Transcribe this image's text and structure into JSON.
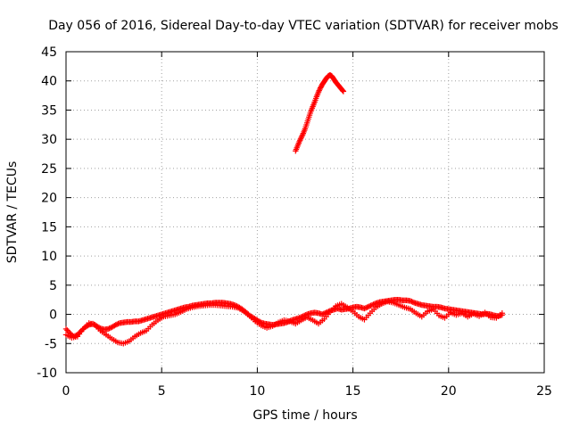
{
  "chart_data": {
    "type": "scatter",
    "title": "Day 056 of 2016, Sidereal Day-to-day VTEC variation (SDTVAR) for receiver mobs",
    "xlabel": "GPS time / hours",
    "ylabel": "SDTVAR / TECUs",
    "xlim": [
      0,
      25
    ],
    "ylim": [
      -10,
      45
    ],
    "xticks": [
      "0",
      "5",
      "10",
      "15",
      "20",
      "25"
    ],
    "yticks": [
      "-10",
      "-5",
      "0",
      "5",
      "10",
      "15",
      "20",
      "25",
      "30",
      "35",
      "40",
      "45"
    ],
    "grid": true,
    "marker": "plus",
    "color": "#ff0000",
    "series": [
      {
        "name": "main band",
        "points": [
          [
            0.0,
            -2.5
          ],
          [
            0.2,
            -3.2
          ],
          [
            0.4,
            -3.8
          ],
          [
            0.6,
            -3.5
          ],
          [
            0.8,
            -2.8
          ],
          [
            1.0,
            -2.2
          ],
          [
            1.2,
            -1.8
          ],
          [
            1.4,
            -1.6
          ],
          [
            1.6,
            -2.0
          ],
          [
            1.8,
            -2.4
          ],
          [
            2.0,
            -2.6
          ],
          [
            2.2,
            -2.5
          ],
          [
            2.4,
            -2.2
          ],
          [
            2.6,
            -1.8
          ],
          [
            2.8,
            -1.5
          ],
          [
            3.0,
            -1.4
          ],
          [
            3.2,
            -1.3
          ],
          [
            3.4,
            -1.3
          ],
          [
            3.6,
            -1.2
          ],
          [
            3.8,
            -1.2
          ],
          [
            4.0,
            -1.0
          ],
          [
            4.2,
            -0.8
          ],
          [
            4.4,
            -0.6
          ],
          [
            4.6,
            -0.4
          ],
          [
            4.8,
            -0.2
          ],
          [
            5.0,
            0.0
          ],
          [
            5.2,
            0.2
          ],
          [
            5.4,
            0.4
          ],
          [
            5.6,
            0.6
          ],
          [
            5.8,
            0.8
          ],
          [
            6.0,
            1.0
          ],
          [
            6.2,
            1.2
          ],
          [
            6.4,
            1.3
          ],
          [
            6.6,
            1.5
          ],
          [
            6.8,
            1.6
          ],
          [
            7.0,
            1.7
          ],
          [
            7.2,
            1.8
          ],
          [
            7.4,
            1.9
          ],
          [
            7.6,
            1.9
          ],
          [
            7.8,
            2.0
          ],
          [
            8.0,
            2.0
          ],
          [
            8.2,
            2.0
          ],
          [
            8.4,
            1.9
          ],
          [
            8.6,
            1.8
          ],
          [
            8.8,
            1.6
          ],
          [
            9.0,
            1.3
          ],
          [
            9.2,
            0.9
          ],
          [
            9.4,
            0.4
          ],
          [
            9.6,
            -0.2
          ],
          [
            9.8,
            -0.6
          ],
          [
            10.0,
            -1.0
          ],
          [
            10.2,
            -1.4
          ],
          [
            10.4,
            -1.6
          ],
          [
            10.6,
            -1.7
          ],
          [
            10.8,
            -1.8
          ],
          [
            11.0,
            -1.7
          ],
          [
            11.2,
            -1.6
          ],
          [
            11.4,
            -1.5
          ],
          [
            11.6,
            -1.3
          ],
          [
            11.8,
            -1.0
          ],
          [
            12.0,
            -0.8
          ],
          [
            12.2,
            -0.6
          ],
          [
            12.4,
            -0.3
          ],
          [
            12.6,
            0.0
          ],
          [
            12.8,
            0.2
          ],
          [
            13.0,
            0.3
          ],
          [
            13.2,
            0.2
          ],
          [
            13.4,
            0.0
          ],
          [
            13.6,
            0.3
          ],
          [
            13.8,
            0.6
          ],
          [
            14.0,
            0.8
          ],
          [
            14.2,
            1.0
          ],
          [
            14.4,
            0.8
          ],
          [
            14.6,
            0.9
          ],
          [
            14.8,
            1.0
          ],
          [
            15.0,
            1.2
          ],
          [
            15.2,
            1.3
          ],
          [
            15.4,
            1.2
          ],
          [
            15.6,
            1.0
          ],
          [
            15.8,
            1.3
          ],
          [
            16.0,
            1.6
          ],
          [
            16.2,
            1.9
          ],
          [
            16.4,
            2.1
          ],
          [
            16.6,
            2.2
          ],
          [
            16.8,
            2.3
          ],
          [
            17.0,
            2.4
          ],
          [
            17.2,
            2.5
          ],
          [
            17.4,
            2.5
          ],
          [
            17.6,
            2.4
          ],
          [
            17.8,
            2.4
          ],
          [
            18.0,
            2.3
          ],
          [
            18.2,
            2.0
          ],
          [
            18.4,
            1.8
          ],
          [
            18.6,
            1.6
          ],
          [
            18.8,
            1.5
          ],
          [
            19.0,
            1.4
          ],
          [
            19.2,
            1.3
          ],
          [
            19.4,
            1.3
          ],
          [
            19.6,
            1.2
          ],
          [
            19.8,
            1.0
          ],
          [
            20.0,
            0.9
          ],
          [
            20.2,
            0.8
          ],
          [
            20.4,
            0.7
          ],
          [
            20.6,
            0.6
          ],
          [
            20.8,
            0.5
          ],
          [
            21.0,
            0.4
          ],
          [
            21.2,
            0.3
          ],
          [
            21.4,
            0.2
          ],
          [
            21.6,
            0.1
          ],
          [
            21.8,
            0.0
          ],
          [
            22.0,
            0.1
          ],
          [
            22.2,
            0.0
          ],
          [
            22.4,
            -0.2
          ],
          [
            22.6,
            -0.3
          ],
          [
            22.8,
            -0.1
          ]
        ]
      },
      {
        "name": "secondary band",
        "points": [
          [
            0.0,
            -3.5
          ],
          [
            0.3,
            -4.0
          ],
          [
            0.6,
            -3.8
          ],
          [
            0.9,
            -2.5
          ],
          [
            1.2,
            -1.5
          ],
          [
            1.5,
            -1.8
          ],
          [
            1.8,
            -2.8
          ],
          [
            2.1,
            -3.5
          ],
          [
            2.4,
            -4.2
          ],
          [
            2.7,
            -4.8
          ],
          [
            3.0,
            -5.0
          ],
          [
            3.3,
            -4.6
          ],
          [
            3.6,
            -3.8
          ],
          [
            3.9,
            -3.2
          ],
          [
            4.2,
            -2.8
          ],
          [
            4.5,
            -1.8
          ],
          [
            4.8,
            -1.0
          ],
          [
            5.1,
            -0.4
          ],
          [
            5.4,
            -0.2
          ],
          [
            5.7,
            0.0
          ],
          [
            6.0,
            0.4
          ],
          [
            6.3,
            0.9
          ],
          [
            6.6,
            1.2
          ],
          [
            6.9,
            1.4
          ],
          [
            7.2,
            1.5
          ],
          [
            7.5,
            1.6
          ],
          [
            7.8,
            1.6
          ],
          [
            8.1,
            1.5
          ],
          [
            8.4,
            1.4
          ],
          [
            8.7,
            1.3
          ],
          [
            9.0,
            1.1
          ],
          [
            9.3,
            0.5
          ],
          [
            9.6,
            -0.3
          ],
          [
            9.9,
            -1.2
          ],
          [
            10.2,
            -1.9
          ],
          [
            10.5,
            -2.3
          ],
          [
            10.8,
            -2.0
          ],
          [
            11.1,
            -1.4
          ],
          [
            11.4,
            -1.0
          ],
          [
            11.7,
            -1.2
          ],
          [
            12.0,
            -1.6
          ],
          [
            12.3,
            -1.0
          ],
          [
            12.6,
            -0.5
          ],
          [
            12.9,
            -1.0
          ],
          [
            13.2,
            -1.6
          ],
          [
            13.5,
            -0.8
          ],
          [
            13.8,
            0.4
          ],
          [
            14.1,
            1.4
          ],
          [
            14.4,
            1.8
          ],
          [
            14.7,
            1.2
          ],
          [
            15.0,
            0.5
          ],
          [
            15.3,
            -0.4
          ],
          [
            15.6,
            -0.9
          ],
          [
            15.9,
            0.2
          ],
          [
            16.2,
            1.2
          ],
          [
            16.5,
            1.8
          ],
          [
            16.8,
            2.2
          ],
          [
            17.1,
            2.0
          ],
          [
            17.4,
            1.6
          ],
          [
            17.7,
            1.2
          ],
          [
            18.0,
            0.9
          ],
          [
            18.3,
            0.2
          ],
          [
            18.6,
            -0.4
          ],
          [
            18.9,
            0.5
          ],
          [
            19.2,
            0.9
          ],
          [
            19.5,
            -0.2
          ],
          [
            19.8,
            -0.6
          ],
          [
            20.1,
            0.3
          ],
          [
            20.4,
            -0.1
          ],
          [
            20.7,
            0.2
          ],
          [
            21.0,
            -0.4
          ],
          [
            21.3,
            0.1
          ],
          [
            21.6,
            -0.3
          ],
          [
            21.9,
            0.3
          ],
          [
            22.2,
            -0.5
          ],
          [
            22.5,
            -0.6
          ],
          [
            22.8,
            0.2
          ]
        ]
      },
      {
        "name": "arc",
        "points": [
          [
            12.0,
            28.0
          ],
          [
            12.1,
            28.8
          ],
          [
            12.2,
            29.6
          ],
          [
            12.3,
            30.3
          ],
          [
            12.4,
            31.0
          ],
          [
            12.5,
            31.8
          ],
          [
            12.6,
            32.8
          ],
          [
            12.7,
            33.8
          ],
          [
            12.8,
            34.8
          ],
          [
            12.9,
            35.6
          ],
          [
            13.0,
            36.4
          ],
          [
            13.1,
            37.3
          ],
          [
            13.2,
            38.1
          ],
          [
            13.3,
            38.8
          ],
          [
            13.4,
            39.4
          ],
          [
            13.5,
            39.9
          ],
          [
            13.6,
            40.4
          ],
          [
            13.7,
            40.8
          ],
          [
            13.8,
            41.0
          ],
          [
            13.9,
            40.8
          ],
          [
            14.0,
            40.3
          ],
          [
            14.1,
            39.8
          ],
          [
            14.2,
            39.4
          ],
          [
            14.3,
            39.0
          ],
          [
            14.4,
            38.6
          ],
          [
            14.5,
            38.2
          ]
        ]
      }
    ]
  }
}
